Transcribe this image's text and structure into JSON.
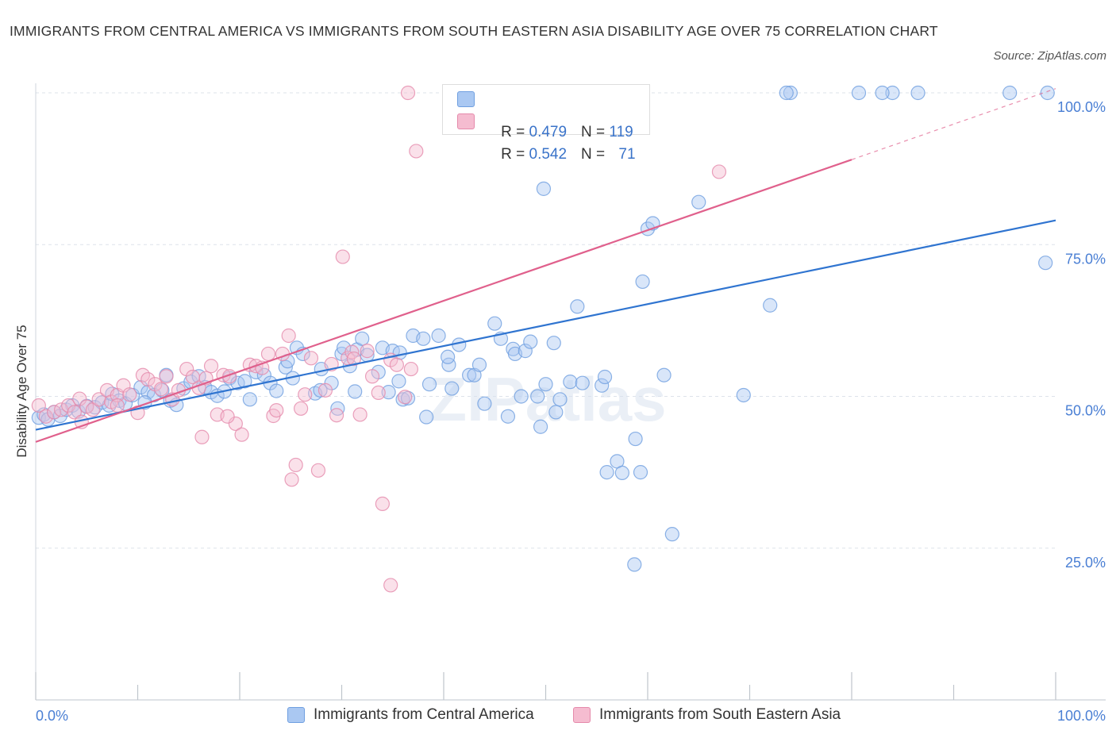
{
  "title": "IMMIGRANTS FROM CENTRAL AMERICA VS IMMIGRANTS FROM SOUTH EASTERN ASIA DISABILITY AGE OVER 75 CORRELATION CHART",
  "source": "Source: ZipAtlas.com",
  "watermark": "ZIPatlas",
  "legend_top": {
    "rows": [
      {
        "r_label": "R = ",
        "r_value": "0.479",
        "n_label": "N = ",
        "n_value": "119"
      },
      {
        "r_label": "R = ",
        "r_value": "0.542",
        "n_label": "N = ",
        "n_value": "71"
      }
    ]
  },
  "colors": {
    "blue": "#6f9fe0",
    "blue_fill": "#aac8f2",
    "blue_line": "#2f74d0",
    "pink": "#e58aab",
    "pink_fill": "#f5bcd0",
    "pink_line": "#e0608c",
    "tick": "#4a7fd4"
  },
  "chart_data": {
    "type": "scatter",
    "xlabel": "",
    "ylabel": "Disability Age Over 75",
    "xlim": [
      0,
      100
    ],
    "ylim": [
      0,
      100
    ],
    "x_tick_labels": [
      "0.0%",
      "100.0%"
    ],
    "y_ticks": [
      25,
      50,
      75,
      100
    ],
    "y_tick_labels": [
      "25.0%",
      "50.0%",
      "75.0%",
      "100.0%"
    ],
    "grid": true,
    "legend_placement": "bottom",
    "series": [
      {
        "name": "Immigrants from Central America",
        "color": "#6f9fe0",
        "r": 0.479,
        "n": 119,
        "trend": {
          "x0": 0,
          "y0": 44.5,
          "x1": 100,
          "y1": 79.0
        },
        "points": [
          [
            0.3,
            46.5
          ],
          [
            0.8,
            47
          ],
          [
            1.2,
            46.2
          ],
          [
            1.8,
            47.4
          ],
          [
            2.4,
            46.8
          ],
          [
            3,
            47.8
          ],
          [
            3.6,
            48.5
          ],
          [
            4.2,
            47.5
          ],
          [
            5,
            48.4
          ],
          [
            5.8,
            48.2
          ],
          [
            6.5,
            49
          ],
          [
            7.2,
            48.5
          ],
          [
            7.5,
            50.4
          ],
          [
            8.2,
            49.3
          ],
          [
            8.8,
            48.8
          ],
          [
            9.5,
            50.2
          ],
          [
            10.3,
            51.5
          ],
          [
            11,
            50.7
          ],
          [
            11.6,
            50.2
          ],
          [
            12.4,
            51
          ],
          [
            13.2,
            49.3
          ],
          [
            13.8,
            48.6
          ],
          [
            14.5,
            51.3
          ],
          [
            15.2,
            52.4
          ],
          [
            16,
            53.3
          ],
          [
            16.6,
            51.5
          ],
          [
            17.2,
            50.7
          ],
          [
            17.8,
            50.1
          ],
          [
            18.5,
            50.8
          ],
          [
            19,
            53
          ],
          [
            19.8,
            52.2
          ],
          [
            20.5,
            52.5
          ],
          [
            21,
            49.5
          ],
          [
            21.6,
            54
          ],
          [
            22.4,
            53.5
          ],
          [
            23,
            52.2
          ],
          [
            23.6,
            50.9
          ],
          [
            24.5,
            54.8
          ],
          [
            24.7,
            55.8
          ],
          [
            25.2,
            53
          ],
          [
            25.6,
            58
          ],
          [
            26.2,
            57
          ],
          [
            27.4,
            50.5
          ],
          [
            27.9,
            51
          ],
          [
            28,
            54.5
          ],
          [
            29,
            52.2
          ],
          [
            29.6,
            48
          ],
          [
            30,
            57
          ],
          [
            30.2,
            58
          ],
          [
            30.8,
            55
          ],
          [
            31.3,
            50.8
          ],
          [
            31.5,
            57.7
          ],
          [
            32,
            59.5
          ],
          [
            32.5,
            56.8
          ],
          [
            33.6,
            54
          ],
          [
            34,
            58
          ],
          [
            34.6,
            50.7
          ],
          [
            35,
            57.5
          ],
          [
            35.6,
            52.5
          ],
          [
            36,
            49.5
          ],
          [
            36.5,
            49.7
          ],
          [
            37,
            60
          ],
          [
            38,
            59.5
          ],
          [
            38.6,
            52
          ],
          [
            39.5,
            60
          ],
          [
            40.5,
            55.2
          ],
          [
            40.8,
            51.3
          ],
          [
            41.5,
            58.5
          ],
          [
            42.5,
            53.5
          ],
          [
            43,
            53.5
          ],
          [
            43.5,
            55.2
          ],
          [
            44,
            48.8
          ],
          [
            45,
            62
          ],
          [
            45.6,
            59.5
          ],
          [
            46.3,
            46.7
          ],
          [
            46.8,
            57.8
          ],
          [
            47,
            57
          ],
          [
            47.6,
            50
          ],
          [
            48,
            57.5
          ],
          [
            48.5,
            59
          ],
          [
            49.2,
            50
          ],
          [
            49.5,
            45
          ],
          [
            50,
            52
          ],
          [
            50.8,
            58.8
          ],
          [
            51,
            47.4
          ],
          [
            51.4,
            49.5
          ],
          [
            52.4,
            52.4
          ],
          [
            53.1,
            64.8
          ],
          [
            53.6,
            52.2
          ],
          [
            55.5,
            51.8
          ],
          [
            55.8,
            53.2
          ],
          [
            56,
            37.5
          ],
          [
            57,
            39.3
          ],
          [
            57.5,
            37.4
          ],
          [
            58.8,
            43
          ],
          [
            58.7,
            22.3
          ],
          [
            59.3,
            37.5
          ],
          [
            59.5,
            68.9
          ],
          [
            60,
            77.6
          ],
          [
            61.6,
            53.5
          ],
          [
            62.4,
            27.3
          ],
          [
            65,
            82
          ],
          [
            72,
            65
          ],
          [
            60.5,
            78.5
          ],
          [
            49.8,
            84.2
          ],
          [
            69.4,
            50.2
          ],
          [
            99,
            72
          ],
          [
            74,
            100
          ],
          [
            80.7,
            100
          ],
          [
            84,
            100
          ],
          [
            86.5,
            100
          ],
          [
            83,
            100
          ],
          [
            73.6,
            100
          ],
          [
            95.5,
            100
          ],
          [
            99.2,
            100
          ],
          [
            38.3,
            46.6
          ],
          [
            12.8,
            53.5
          ],
          [
            10.7,
            49
          ],
          [
            35.7,
            57.2
          ],
          [
            40.4,
            56.5
          ]
        ]
      },
      {
        "name": "Immigrants from South Eastern Asia",
        "color": "#e58aab",
        "r": 0.542,
        "n": 71,
        "trend": {
          "x0": 0,
          "y0": 42.5,
          "x1": 80,
          "y1": 89.0,
          "dash_to_x": 100,
          "dash_to_y": 100.7
        },
        "points": [
          [
            0.3,
            48.5
          ],
          [
            1,
            46.7
          ],
          [
            1.8,
            47.4
          ],
          [
            2.5,
            47.8
          ],
          [
            3.2,
            48.5
          ],
          [
            3.8,
            47.4
          ],
          [
            4.3,
            49.6
          ],
          [
            5,
            48.3
          ],
          [
            5.6,
            47.8
          ],
          [
            6.2,
            49.5
          ],
          [
            7,
            51
          ],
          [
            7.4,
            49.1
          ],
          [
            8,
            50.2
          ],
          [
            8.6,
            51.8
          ],
          [
            9.2,
            50.3
          ],
          [
            10,
            47.3
          ],
          [
            10.5,
            53.5
          ],
          [
            11,
            52.8
          ],
          [
            11.7,
            52
          ],
          [
            12.3,
            51.2
          ],
          [
            12.8,
            53.3
          ],
          [
            13.4,
            49.5
          ],
          [
            14,
            51
          ],
          [
            14.8,
            54.5
          ],
          [
            15.4,
            53.2
          ],
          [
            16,
            51.4
          ],
          [
            16.7,
            53
          ],
          [
            17.2,
            55
          ],
          [
            17.8,
            47
          ],
          [
            18.4,
            53.5
          ],
          [
            19,
            53.3
          ],
          [
            19.6,
            45.5
          ],
          [
            20.2,
            43.7
          ],
          [
            21,
            55.2
          ],
          [
            21.6,
            55
          ],
          [
            22.2,
            54.7
          ],
          [
            22.8,
            57
          ],
          [
            23.3,
            46.8
          ],
          [
            23.6,
            47.7
          ],
          [
            24.2,
            57
          ],
          [
            24.8,
            60
          ],
          [
            25.5,
            38.7
          ],
          [
            26,
            48
          ],
          [
            26.4,
            50.3
          ],
          [
            27,
            56.3
          ],
          [
            27.7,
            37.8
          ],
          [
            28.4,
            51
          ],
          [
            29,
            55.3
          ],
          [
            29.5,
            46.9
          ],
          [
            30.1,
            73
          ],
          [
            30.6,
            56.3
          ],
          [
            31,
            57.3
          ],
          [
            31.2,
            56.2
          ],
          [
            31.8,
            47
          ],
          [
            32.5,
            57.5
          ],
          [
            33,
            53.3
          ],
          [
            33.6,
            50.6
          ],
          [
            34,
            32.3
          ],
          [
            34.8,
            56
          ],
          [
            35.4,
            55.2
          ],
          [
            36.2,
            49.9
          ],
          [
            36.8,
            54.5
          ],
          [
            37.3,
            90.4
          ],
          [
            36.5,
            100
          ],
          [
            25.1,
            36.3
          ],
          [
            34.8,
            18.9
          ],
          [
            67,
            87
          ],
          [
            8,
            48.5
          ],
          [
            18.8,
            46.7
          ],
          [
            4.5,
            45.8
          ],
          [
            16.3,
            43.3
          ]
        ]
      }
    ]
  }
}
